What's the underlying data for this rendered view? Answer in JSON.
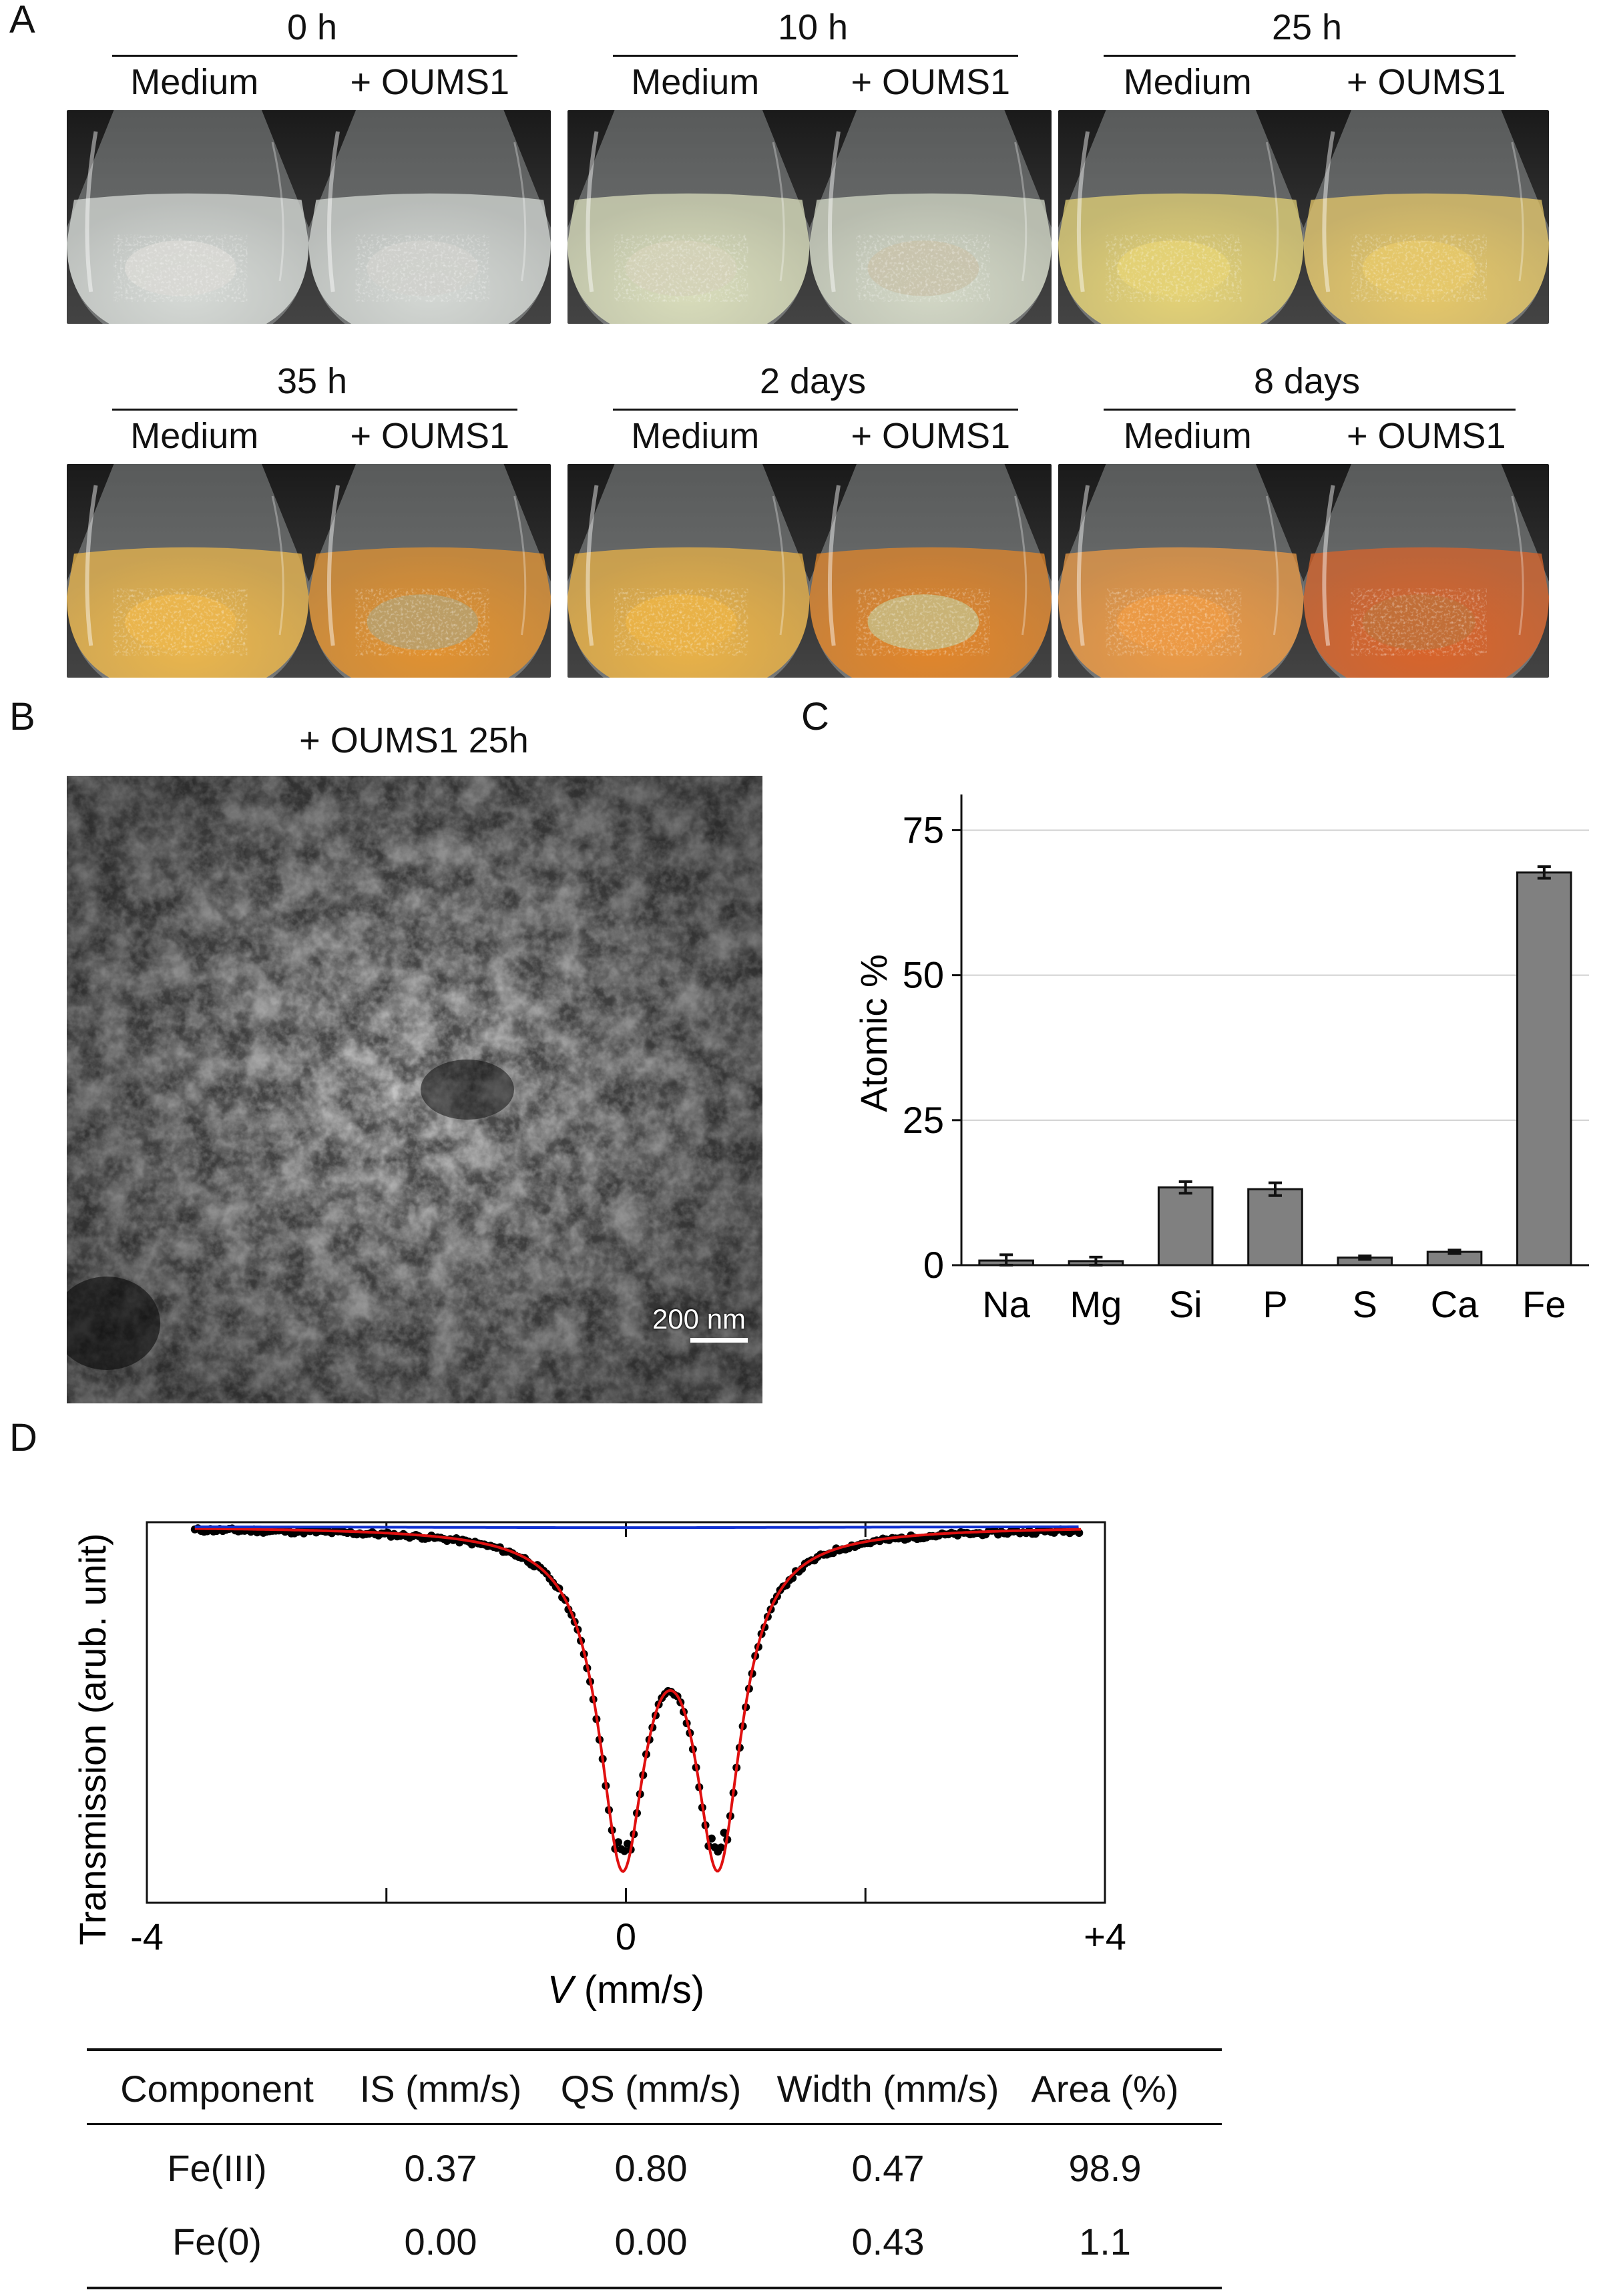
{
  "panels": {
    "A": "A",
    "B": "B",
    "C": "C",
    "D": "D"
  },
  "panel_a": {
    "condition_medium": "Medium",
    "condition_oums1": "+ OUMS1",
    "timepoints": [
      {
        "label": "0 h",
        "medium_color": "#d6dad6",
        "oums_color": "#d4d8d4",
        "medium_deposit": "#d8d8d4",
        "oums_deposit": "#cfd0cc"
      },
      {
        "label": "10 h",
        "medium_color": "#d9ddbb",
        "oums_color": "#d3d8c6",
        "medium_deposit": "#d4d1b8",
        "oums_deposit": "#c9c3ac"
      },
      {
        "label": "25 h",
        "medium_color": "#e4d276",
        "oums_color": "#e6c86a",
        "medium_deposit": "#e4d276",
        "oums_deposit": "#e6c86a"
      },
      {
        "label": "35 h",
        "medium_color": "#ebb64c",
        "oums_color": "#e29230",
        "medium_deposit": "#ebb64c",
        "oums_deposit": "#b9a06c"
      },
      {
        "label": "2 days",
        "medium_color": "#eab247",
        "oums_color": "#e2862a",
        "medium_deposit": "#eab247",
        "oums_deposit": "#c8b87e"
      },
      {
        "label": "8 days",
        "medium_color": "#ec9a45",
        "oums_color": "#d9642a",
        "medium_deposit": "#ec9a45",
        "oums_deposit": "#c0703a"
      }
    ]
  },
  "panel_b": {
    "title": "+ OUMS1 25h",
    "scale_bar": "200 nm"
  },
  "chart_data": [
    {
      "type": "bar",
      "categories": [
        "Na",
        "Mg",
        "Si",
        "P",
        "S",
        "Ca",
        "Fe"
      ],
      "values": [
        0.8,
        0.7,
        13.4,
        13.1,
        1.3,
        2.3,
        67.7
      ],
      "errors": [
        1.0,
        0.7,
        1.0,
        1.1,
        0.3,
        0.3,
        1.0
      ],
      "ylabel": "Atomic %",
      "ylim": [
        0,
        80
      ],
      "yticks": [
        0,
        25,
        50,
        75
      ],
      "grid": true,
      "bar_color": "#808080"
    },
    {
      "type": "line",
      "xlabel_var": "V",
      "xlabel_unit": " (mm/s)",
      "ylabel": "Transmission (arub. unit)",
      "xlim": [
        -4,
        4
      ],
      "xticks": [
        "-4",
        "0",
        "+4"
      ],
      "data_x_range": [
        -3.6,
        3.8
      ],
      "baseline": 1.0,
      "components": [
        {
          "name": "Fe(III)",
          "is": 0.37,
          "qs": 0.8,
          "width": 0.47,
          "area": 98.9,
          "color": "#e01010"
        },
        {
          "name": "Fe(0)",
          "is": 0.0,
          "qs": 0.0,
          "width": 0.43,
          "area": 1.1,
          "color": "#1030d0"
        }
      ],
      "data_color": "#000000"
    }
  ],
  "table": {
    "headers": [
      "Component",
      "IS (mm/s)",
      "QS (mm/s)",
      "Width (mm/s)",
      "Area (%)"
    ],
    "rows": [
      [
        "Fe(III)",
        "0.37",
        "0.80",
        "0.47",
        "98.9"
      ],
      [
        "Fe(0)",
        "0.00",
        "0.00",
        "0.43",
        "1.1"
      ]
    ]
  }
}
